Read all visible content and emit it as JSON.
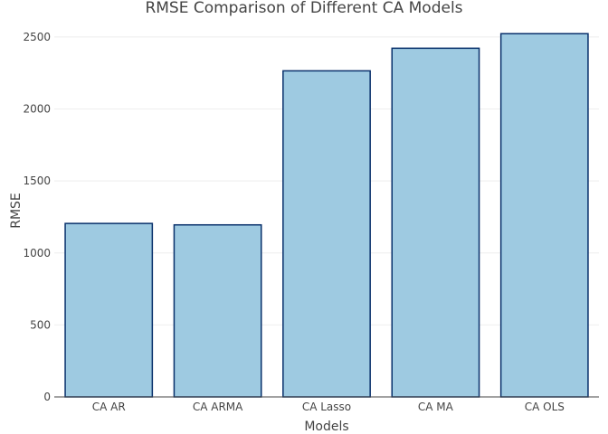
{
  "chart_data": {
    "type": "bar",
    "title": "RMSE Comparison of Different CA Models",
    "xlabel": "Models",
    "ylabel": "RMSE",
    "categories": [
      "CA AR",
      "CA ARMA",
      "CA Lasso",
      "CA MA",
      "CA OLS"
    ],
    "values": [
      1205,
      1195,
      2265,
      2422,
      2523
    ],
    "ylim": [
      0,
      2600
    ],
    "yticks": [
      0,
      500,
      1000,
      1500,
      2000,
      2500
    ],
    "grid": true,
    "bar_fill": "#9ecae1",
    "bar_outline": "#08306b"
  }
}
